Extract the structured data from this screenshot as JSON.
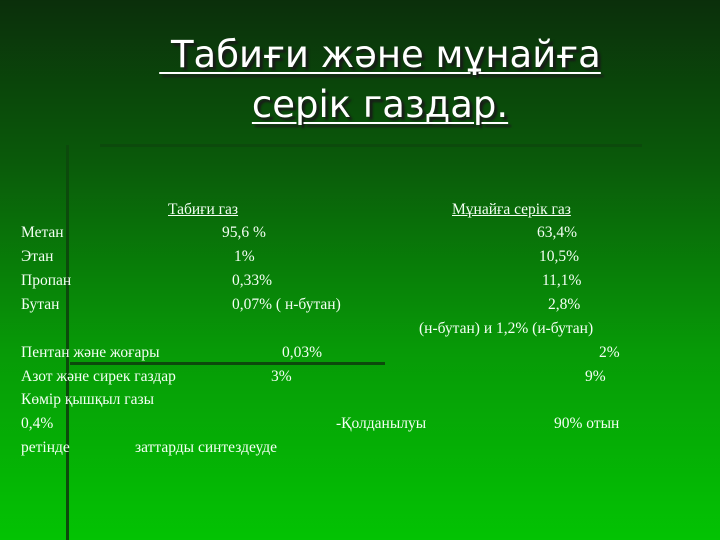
{
  "title": {
    "line1": " Табиғи және мұнайға",
    "line2": "серік газдар."
  },
  "headers": {
    "natural": "Табиғи газ",
    "associated": "Мұнайға серік газ"
  },
  "rows": [
    {
      "name": "Метан",
      "natural": "95,6 %",
      "associated": "63,4%"
    },
    {
      "name": "Этан",
      "natural": "1%",
      "associated": "10,5%"
    },
    {
      "name": "Пропан",
      "natural": "0,33%",
      "associated": "11,1%"
    },
    {
      "name": "Бутан",
      "natural": "0,07% ( н-бутан)",
      "associated": "2,8%"
    },
    {
      "name": "",
      "natural": "",
      "associated": "(н-бутан) и 1,2% (и-бутан)"
    },
    {
      "name": "Пентан және жоғары",
      "natural": "0,03%",
      "associated": "2%"
    },
    {
      "name": "Азот және сирек газдар",
      "natural": "3%",
      "associated": "9%"
    },
    {
      "name": "Көмір қышқыл газы",
      "natural": "",
      "associated": ""
    }
  ],
  "footer": {
    "value": "0,4%",
    "usage": "-Қолданылуы",
    "fuel": "90% отын",
    "line2a": "ретінде",
    "line2b": "заттарды синтездеуде"
  }
}
